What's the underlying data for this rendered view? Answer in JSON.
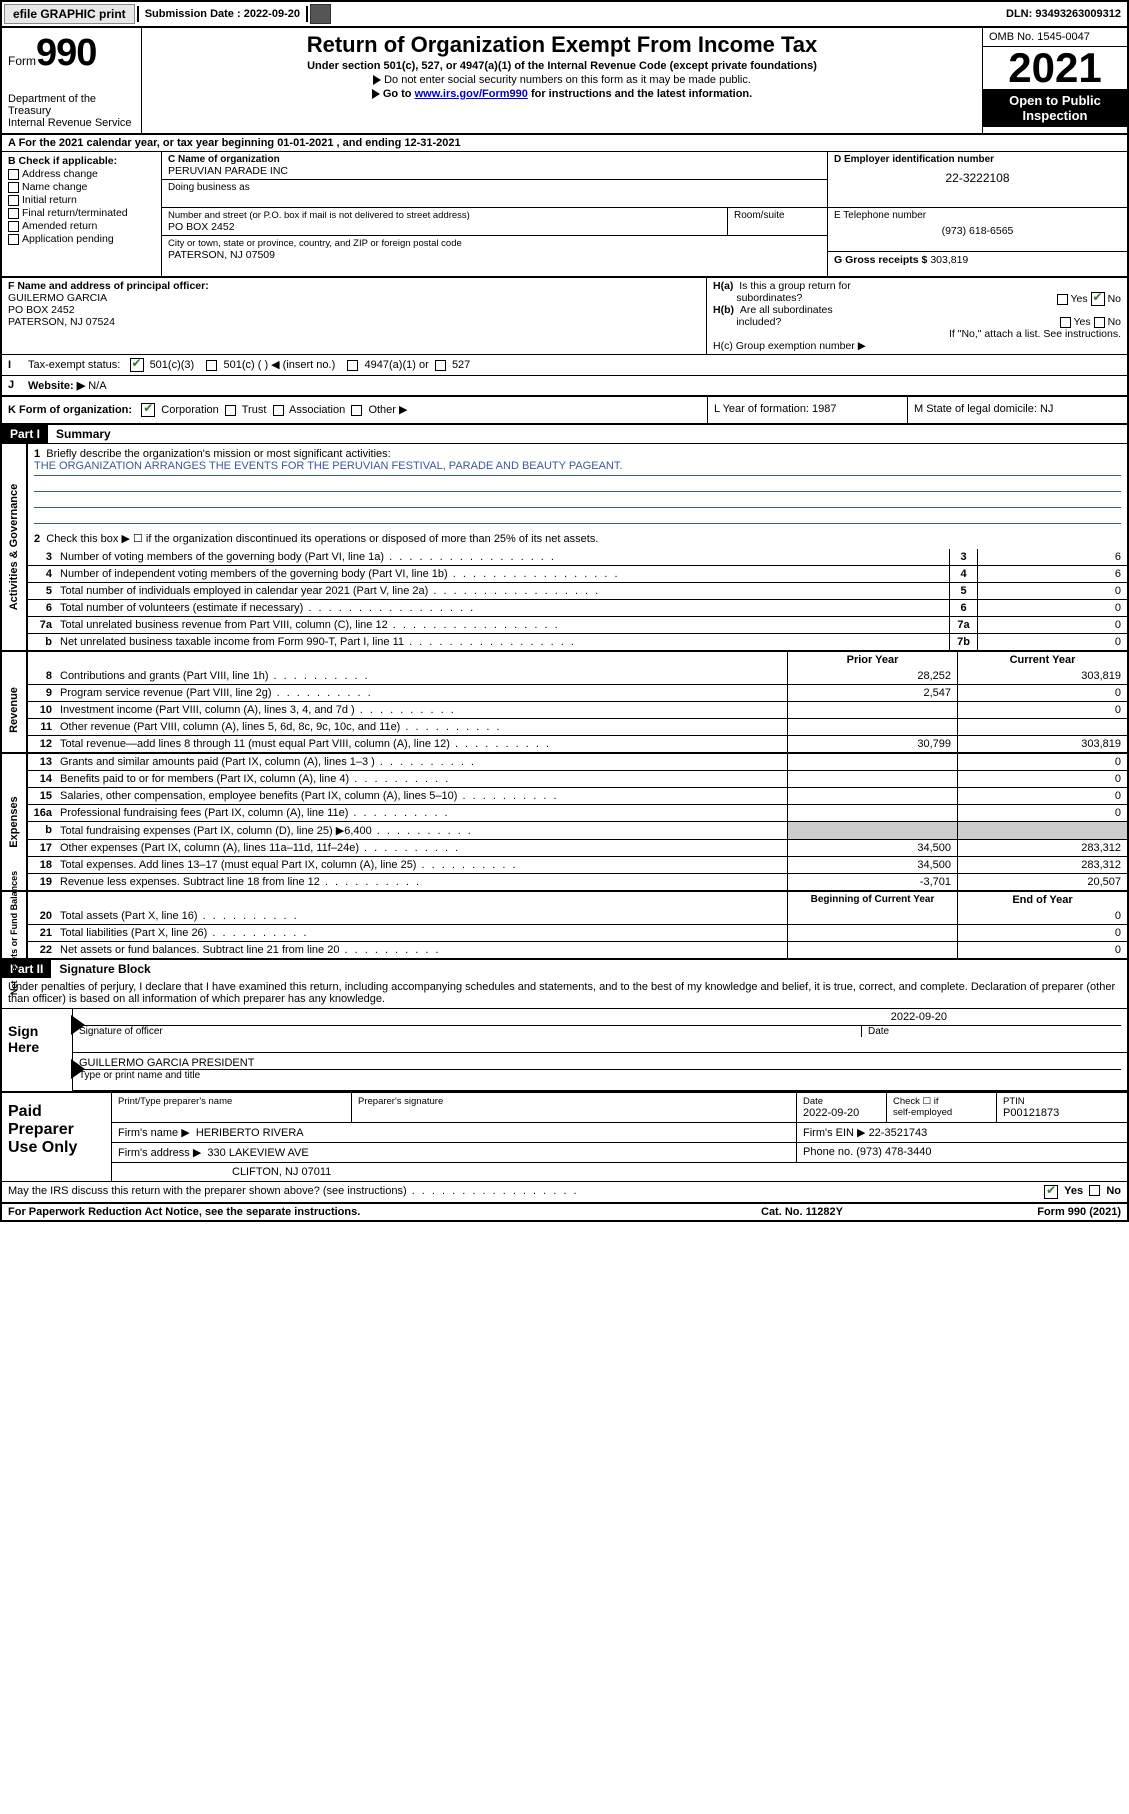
{
  "colors": {
    "link": "#0000cc",
    "check": "#2e7d32",
    "ruled": "#3b5998",
    "shade": "#cccccc",
    "black": "#000000",
    "white": "#ffffff"
  },
  "topbar": {
    "efile": "efile GRAPHIC print",
    "subLabel": "Submission Date : 2022-09-20",
    "dln": "DLN: 93493263009312"
  },
  "header": {
    "formWord": "Form",
    "formNum": "990",
    "title": "Return of Organization Exempt From Income Tax",
    "subtitle": "Under section 501(c), 527, or 4947(a)(1) of the Internal Revenue Code (except private foundations)",
    "note1": "Do not enter social security numbers on this form as it may be made public.",
    "note2a": "Go to ",
    "note2link": "www.irs.gov/Form990",
    "note2b": " for instructions and the latest information.",
    "dept": "Department of the Treasury\nInternal Revenue Service",
    "omb": "OMB No. 1545-0047",
    "year": "2021",
    "open": "Open to Public Inspection"
  },
  "rowA": {
    "text": "A For the 2021 calendar year, or tax year beginning 01-01-2021    , and ending 12-31-2021"
  },
  "B": {
    "label": "B Check if applicable:",
    "opts": [
      "Address change",
      "Name change",
      "Initial return",
      "Final return/terminated",
      "Amended return",
      "Application pending"
    ]
  },
  "C": {
    "nameLbl": "C Name of organization",
    "name": "PERUVIAN PARADE INC",
    "dbaLbl": "Doing business as",
    "streetLbl": "Number and street (or P.O. box if mail is not delivered to street address)",
    "roomLbl": "Room/suite",
    "street": "PO BOX 2452",
    "cityLbl": "City or town, state or province, country, and ZIP or foreign postal code",
    "city": "PATERSON, NJ  07509"
  },
  "D": {
    "lbl": "D Employer identification number",
    "val": "22-3222108"
  },
  "E": {
    "lbl": "E Telephone number",
    "val": "(973) 618-6565"
  },
  "G": {
    "lbl": "G Gross receipts $",
    "val": "303,819"
  },
  "F": {
    "lbl": "F Name and address of principal officer:",
    "name": "GUILERMO GARCIA",
    "addr1": "PO BOX 2452",
    "addr2": "PATERSON, NJ  07524"
  },
  "H": {
    "a": "H(a)  Is this a group return for subordinates?",
    "aNo": "No",
    "aYes": "Yes",
    "b": "H(b)  Are all subordinates included?",
    "bNote": "If \"No,\" attach a list. See instructions.",
    "c": "H(c)  Group exemption number ▶"
  },
  "I": {
    "lbl": "Tax-exempt status:",
    "o1": "501(c)(3)",
    "o2": "501(c) (   ) ◀ (insert no.)",
    "o3": "4947(a)(1) or",
    "o4": "527"
  },
  "J": {
    "lbl": "Website: ▶",
    "val": "N/A"
  },
  "K": {
    "lbl": "K Form of organization:",
    "o1": "Corporation",
    "o2": "Trust",
    "o3": "Association",
    "o4": "Other ▶",
    "L": "L Year of formation: 1987",
    "M": "M State of legal domicile: NJ"
  },
  "part1": {
    "hdr": "Part I",
    "title": "Summary",
    "l1a": "Briefly describe the organization's mission or most significant activities:",
    "l1b": "THE ORGANIZATION ARRANGES THE EVENTS FOR THE PERUVIAN FESTIVAL, PARADE AND BEAUTY PAGEANT.",
    "l2": "Check this box ▶ ☐  if the organization discontinued its operations or disposed of more than 25% of its net assets.",
    "sideA": "Activities & Governance",
    "sideR": "Revenue",
    "sideE": "Expenses",
    "sideN": "Net Assets or Fund Balances",
    "lines_gov": [
      {
        "n": "3",
        "d": "Number of voting members of the governing body (Part VI, line 1a)",
        "box": "3",
        "v": "6"
      },
      {
        "n": "4",
        "d": "Number of independent voting members of the governing body (Part VI, line 1b)",
        "box": "4",
        "v": "6"
      },
      {
        "n": "5",
        "d": "Total number of individuals employed in calendar year 2021 (Part V, line 2a)",
        "box": "5",
        "v": "0"
      },
      {
        "n": "6",
        "d": "Total number of volunteers (estimate if necessary)",
        "box": "6",
        "v": "0"
      },
      {
        "n": "7a",
        "d": "Total unrelated business revenue from Part VIII, column (C), line 12",
        "box": "7a",
        "v": "0"
      },
      {
        "n": "b",
        "d": "Net unrelated business taxable income from Form 990-T, Part I, line 11",
        "box": "7b",
        "v": "0"
      }
    ],
    "colHdr1": "Prior Year",
    "colHdr2": "Current Year",
    "lines_rev": [
      {
        "n": "8",
        "d": "Contributions and grants (Part VIII, line 1h)",
        "p": "28,252",
        "c": "303,819"
      },
      {
        "n": "9",
        "d": "Program service revenue (Part VIII, line 2g)",
        "p": "2,547",
        "c": "0"
      },
      {
        "n": "10",
        "d": "Investment income (Part VIII, column (A), lines 3, 4, and 7d )",
        "p": "",
        "c": "0"
      },
      {
        "n": "11",
        "d": "Other revenue (Part VIII, column (A), lines 5, 6d, 8c, 9c, 10c, and 11e)",
        "p": "",
        "c": ""
      },
      {
        "n": "12",
        "d": "Total revenue—add lines 8 through 11 (must equal Part VIII, column (A), line 12)",
        "p": "30,799",
        "c": "303,819"
      }
    ],
    "lines_exp": [
      {
        "n": "13",
        "d": "Grants and similar amounts paid (Part IX, column (A), lines 1–3 )",
        "p": "",
        "c": "0"
      },
      {
        "n": "14",
        "d": "Benefits paid to or for members (Part IX, column (A), line 4)",
        "p": "",
        "c": "0"
      },
      {
        "n": "15",
        "d": "Salaries, other compensation, employee benefits (Part IX, column (A), lines 5–10)",
        "p": "",
        "c": "0"
      },
      {
        "n": "16a",
        "d": "Professional fundraising fees (Part IX, column (A), line 11e)",
        "p": "",
        "c": "0"
      },
      {
        "n": "b",
        "d": "Total fundraising expenses (Part IX, column (D), line 25) ▶6,400",
        "p": "SHADE",
        "c": "SHADE"
      },
      {
        "n": "17",
        "d": "Other expenses (Part IX, column (A), lines 11a–11d, 11f–24e)",
        "p": "34,500",
        "c": "283,312"
      },
      {
        "n": "18",
        "d": "Total expenses. Add lines 13–17 (must equal Part IX, column (A), line 25)",
        "p": "34,500",
        "c": "283,312"
      },
      {
        "n": "19",
        "d": "Revenue less expenses. Subtract line 18 from line 12",
        "p": "-3,701",
        "c": "20,507"
      }
    ],
    "colHdr3": "Beginning of Current Year",
    "colHdr4": "End of Year",
    "lines_net": [
      {
        "n": "20",
        "d": "Total assets (Part X, line 16)",
        "p": "",
        "c": "0"
      },
      {
        "n": "21",
        "d": "Total liabilities (Part X, line 26)",
        "p": "",
        "c": "0"
      },
      {
        "n": "22",
        "d": "Net assets or fund balances. Subtract line 21 from line 20",
        "p": "",
        "c": "0"
      }
    ]
  },
  "part2": {
    "hdr": "Part II",
    "title": "Signature Block",
    "decl": "Under penalties of perjury, I declare that I have examined this return, including accompanying schedules and statements, and to the best of my knowledge and belief, it is true, correct, and complete. Declaration of preparer (other than officer) is based on all information of which preparer has any knowledge.",
    "signHere": "Sign Here",
    "sigOfficer": "Signature of officer",
    "sigDate": "2022-09-20",
    "dateLbl": "Date",
    "officerName": "GUILLERMO GARCIA  PRESIDENT",
    "typeLbl": "Type or print name and title"
  },
  "paid": {
    "hdr": "Paid Preparer Use Only",
    "h1": "Print/Type preparer's name",
    "h2": "Preparer's signature",
    "h3": "Date",
    "h3v": "2022-09-20",
    "h4a": "Check ☐ if",
    "h4b": "self-employed",
    "h5": "PTIN",
    "h5v": "P00121873",
    "firmNameLbl": "Firm's name    ▶",
    "firmName": "HERIBERTO RIVERA",
    "firmEinLbl": "Firm's EIN ▶",
    "firmEin": "22-3521743",
    "firmAddrLbl": "Firm's address ▶",
    "firmAddr1": "330 LAKEVIEW AVE",
    "firmAddr2": "CLIFTON, NJ  07011",
    "phoneLbl": "Phone no.",
    "phone": "(973) 478-3440"
  },
  "discuss": {
    "q": "May the IRS discuss this return with the preparer shown above? (see instructions)",
    "yes": "Yes",
    "no": "No"
  },
  "footer": {
    "left": "For Paperwork Reduction Act Notice, see the separate instructions.",
    "mid": "Cat. No. 11282Y",
    "right": "Form 990 (2021)"
  }
}
